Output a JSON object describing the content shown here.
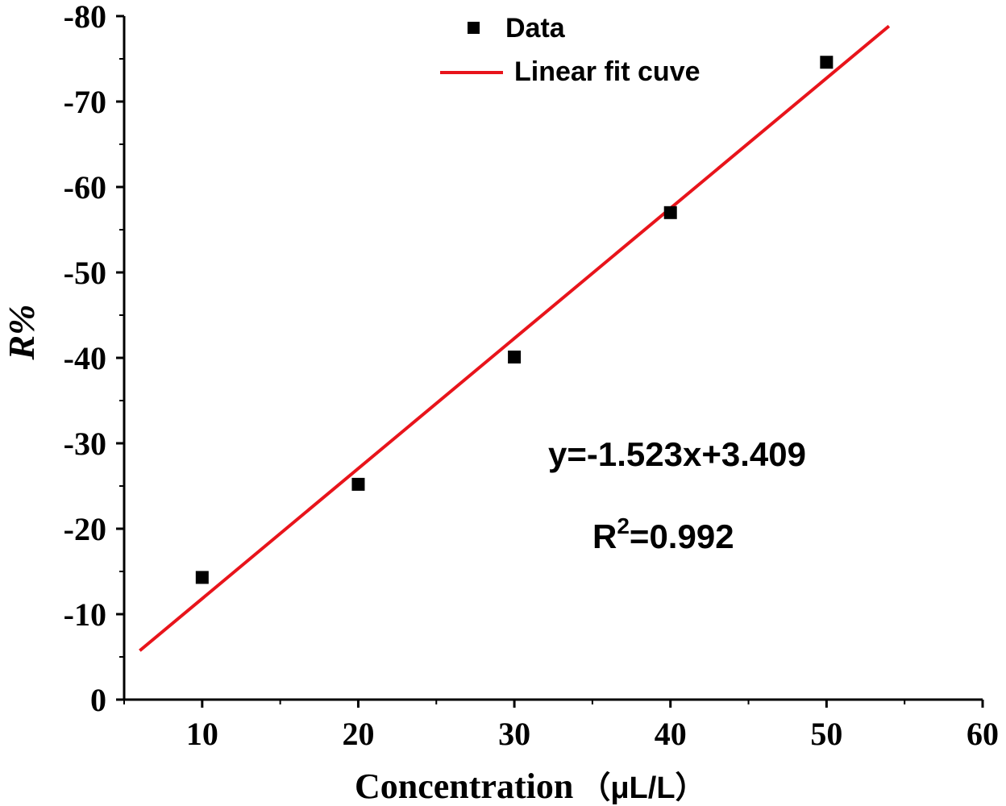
{
  "chart_data": {
    "type": "scatter",
    "xlabel": "Concentration",
    "xlabel_unit": "（μL/L）",
    "ylabel": "R%",
    "xlim": [
      5,
      60
    ],
    "ylim": [
      0,
      -80
    ],
    "x_ticks": [
      10,
      20,
      30,
      40,
      50,
      60
    ],
    "x_tick_labels": [
      "10",
      "20",
      "30",
      "40",
      "50",
      "60"
    ],
    "y_ticks": [
      0,
      -10,
      -20,
      -30,
      -40,
      -50,
      -60,
      -70,
      -80
    ],
    "y_tick_labels": [
      "0",
      "-10",
      "-20",
      "-30",
      "-40",
      "-50",
      "-60",
      "-70",
      "-80"
    ],
    "grid": false,
    "legend_position": "top-center",
    "series": [
      {
        "name": "Data",
        "kind": "scatter",
        "marker": "square",
        "color": "#000000",
        "x": [
          10,
          20,
          30,
          40,
          50
        ],
        "y": [
          -14.3,
          -25.2,
          -40.1,
          -57.0,
          -74.6
        ]
      },
      {
        "name": "Linear fit cuve",
        "kind": "line",
        "color": "#e8141b",
        "x": [
          6,
          54
        ],
        "slope": -1.523,
        "intercept": 3.409
      }
    ],
    "annotations": {
      "equation": "y=-1.523x+3.409",
      "r2_base": "R",
      "r2_sup": "2",
      "r2_value": "=0.992"
    }
  }
}
